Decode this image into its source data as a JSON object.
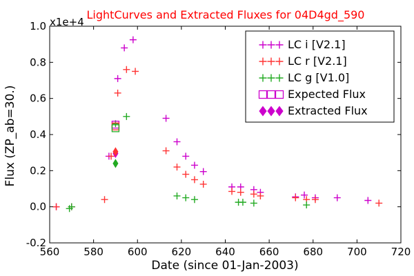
{
  "chart_data": {
    "type": "scatter",
    "title": "LightCurves and Extracted Fluxes for 04D4gd_590",
    "xlabel": "Date (since 01-Jan-2003)",
    "ylabel": "Flux (ZP_ab=30.)",
    "y_multiplier_label": "x1e+4",
    "xlim": [
      560,
      720
    ],
    "ylim": [
      -0.2,
      1.0
    ],
    "xticks": [
      "560",
      "580",
      "600",
      "620",
      "640",
      "660",
      "680",
      "700",
      "720"
    ],
    "yticks": [
      "-0.2",
      "0.0",
      "0.2",
      "0.4",
      "0.6",
      "0.8",
      "1.0"
    ],
    "legend_position": "top-right",
    "series": [
      {
        "name": "LC i [V2.1]",
        "marker": "plus",
        "color": "#cc00cc",
        "x": [
          563,
          570,
          587,
          591,
          594,
          598,
          613,
          618,
          622,
          626,
          630,
          643,
          647,
          653,
          656,
          672,
          676,
          681,
          691,
          705
        ],
        "y": [
          0.0,
          0.0,
          0.28,
          0.71,
          0.88,
          0.925,
          0.49,
          0.36,
          0.28,
          0.23,
          0.195,
          0.11,
          0.11,
          0.095,
          0.08,
          0.055,
          0.065,
          0.05,
          0.05,
          0.035
        ]
      },
      {
        "name": "LC r [V2.1]",
        "marker": "plus",
        "color": "#ff3333",
        "x": [
          563,
          570,
          585,
          588,
          591,
          595,
          599,
          613,
          618,
          622,
          626,
          630,
          643,
          647,
          653,
          656,
          672,
          677,
          681,
          710
        ],
        "y": [
          0.0,
          0.0,
          0.04,
          0.28,
          0.63,
          0.76,
          0.75,
          0.31,
          0.22,
          0.18,
          0.15,
          0.125,
          0.085,
          0.08,
          0.07,
          0.06,
          0.05,
          0.04,
          0.04,
          0.02
        ]
      },
      {
        "name": "LC g [V1.0]",
        "marker": "plus",
        "color": "#22aa22",
        "x": [
          569,
          570,
          590,
          595,
          618,
          622,
          626,
          646,
          648,
          653,
          677
        ],
        "y": [
          -0.01,
          0.0,
          0.46,
          0.5,
          0.06,
          0.05,
          0.04,
          0.025,
          0.025,
          0.02,
          0.01
        ]
      },
      {
        "name": "Expected Flux",
        "marker": "square-open",
        "color": "#cc00cc",
        "x": [
          590,
          590,
          590
        ],
        "y": [
          0.455,
          0.445,
          0.435
        ],
        "colors": [
          "#cc00cc",
          "#ff3333",
          "#22aa22"
        ]
      },
      {
        "name": "Extracted Flux",
        "marker": "diamond",
        "color": "#cc00cc",
        "x": [
          590,
          590,
          590
        ],
        "y": [
          0.295,
          0.305,
          0.24
        ],
        "colors": [
          "#cc00cc",
          "#ff3333",
          "#22aa22"
        ]
      }
    ]
  }
}
